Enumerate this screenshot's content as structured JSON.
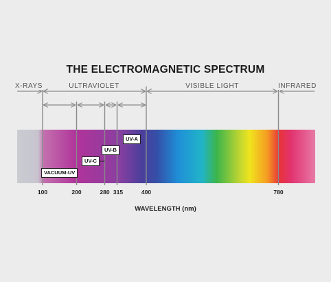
{
  "title": "THE ELECTROMAGNETIC SPECTRUM",
  "regions": {
    "xrays": "X-RAYS",
    "ultraviolet": "ULTRAVIOLET",
    "visible": "VISIBLE LIGHT",
    "infrared": "INFRARED"
  },
  "bands": {
    "vacuum_uv": "VACUUM-UV",
    "uv_c": "UV-C",
    "uv_b": "UV-B",
    "uv_a": "UV-A"
  },
  "ticks": [
    "100",
    "200",
    "280",
    "315",
    "400",
    "780"
  ],
  "axis_label": "WAVELENGTH (nm)",
  "colors": {
    "background": "#ececec",
    "line": "#8a8a8a",
    "text": "#1b1b1b"
  }
}
